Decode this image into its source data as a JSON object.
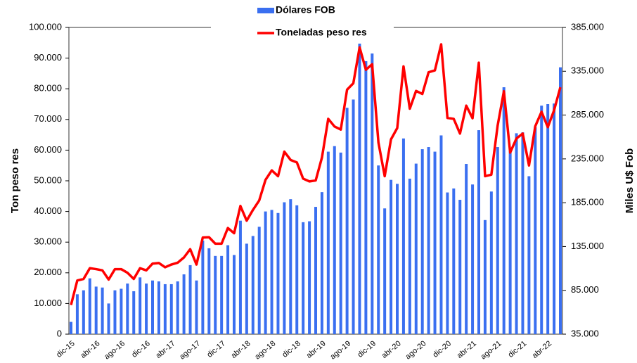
{
  "chart_data": {
    "type": "bar-line",
    "categories": [
      "dic-15",
      null,
      null,
      null,
      "abr-16",
      null,
      null,
      null,
      "ago-16",
      null,
      null,
      null,
      "dic-16",
      null,
      null,
      null,
      "abr-17",
      null,
      null,
      null,
      "ago-17",
      null,
      null,
      null,
      "dic-17",
      null,
      null,
      null,
      "abr-18",
      null,
      null,
      null,
      "ago-18",
      null,
      null,
      null,
      "dic-18",
      null,
      null,
      null,
      "abr-19",
      null,
      null,
      null,
      "ago-19",
      null,
      null,
      null,
      "dic-19",
      null,
      null,
      null,
      "abr-20",
      null,
      null,
      null,
      "ago-20",
      null,
      null,
      null,
      "dic-20",
      null,
      null,
      null,
      "abr-21",
      null,
      null,
      null,
      "ago-21",
      null,
      null,
      null,
      "dic-21",
      null,
      null,
      null,
      "abr-22",
      null,
      null
    ],
    "series": [
      {
        "name": "Dólares FOB",
        "color": "#3a6ff0",
        "axis": "y2",
        "kind": "bar",
        "values": [
          49000,
          80500,
          85050,
          98700,
          89250,
          88200,
          70000,
          85050,
          86800,
          92750,
          84000,
          99750,
          92750,
          96250,
          95200,
          92050,
          92050,
          95200,
          103250,
          113750,
          96250,
          141750,
          133000,
          124250,
          124250,
          136500,
          125300,
          164500,
          138250,
          147000,
          157500,
          175000,
          176750,
          173250,
          185500,
          189000,
          182000,
          162750,
          163800,
          180250,
          197050,
          243250,
          249550,
          242200,
          293300,
          302750,
          367500,
          346500,
          355250,
          227500,
          178500,
          211050,
          206500,
          258300,
          212450,
          229600,
          246050,
          248500,
          243250,
          261800,
          196700,
          201250,
          188300,
          229250,
          205800,
          267750,
          165200,
          197750,
          248500,
          316750,
          245000,
          264250,
          265300,
          215250,
          271250,
          295750,
          297500,
          298200,
          339500
        ]
      },
      {
        "name": "Toneladas peso res",
        "color": "#ff0000",
        "axis": "y",
        "kind": "line",
        "values": [
          9.5,
          17.5,
          18,
          21.5,
          21.2,
          20.8,
          17.8,
          21.2,
          21.2,
          20,
          18,
          21.5,
          20.8,
          23,
          23.2,
          21.8,
          22.7,
          23.3,
          25,
          27.7,
          22.7,
          31.5,
          31.6,
          29.5,
          29.5,
          34.6,
          32.9,
          41.8,
          37,
          40.5,
          43.6,
          50.3,
          53.4,
          51.5,
          59.5,
          56.8,
          56,
          50.7,
          49.8,
          50.1,
          57.6,
          70.2,
          67.7,
          66.7,
          79.7,
          81.8,
          93.5,
          86.2,
          88,
          62.5,
          51.5,
          63.5,
          67.2,
          87.3,
          73.5,
          79.3,
          78.3,
          85.4,
          86,
          94.5,
          70.5,
          70.2,
          65.4,
          74.5,
          70.4,
          88.5,
          51.5,
          52,
          68,
          79.2,
          59.2,
          63.8,
          65.4,
          55,
          67.8,
          72.5,
          67.5,
          73,
          80.5
        ]
      }
    ],
    "y_label": "Ton peso res",
    "y2_label": "Miles U$ Fob",
    "ylim": [
      0,
      100
    ],
    "yticks": [
      0,
      {
        "value": 10,
        "label": "10.000"
      },
      {
        "value": 20,
        "label": "20.000"
      },
      {
        "value": 30,
        "label": "30.000"
      },
      {
        "value": 40,
        "label": "40.000"
      },
      {
        "value": 50,
        "label": "50.000"
      },
      {
        "value": 60,
        "label": "60.000"
      },
      {
        "value": 70,
        "label": "70.000"
      },
      {
        "value": 80,
        "label": "80.000"
      },
      {
        "value": 90,
        "label": "90.000"
      },
      {
        "value": 100,
        "label": "100.000"
      }
    ],
    "y2lim": [
      35000,
      385000
    ],
    "y2ticks": [
      {
        "value": 35000,
        "label": "35.000"
      },
      {
        "value": 85000,
        "label": "85.000"
      },
      {
        "value": 135000,
        "label": "135.000"
      },
      {
        "value": 185000,
        "label": "185.000"
      },
      {
        "value": 235000,
        "label": "235.000"
      },
      {
        "value": 285000,
        "label": "285.000"
      },
      {
        "value": 335000,
        "label": "335.000"
      },
      {
        "value": 385000,
        "label": "385.000"
      }
    ],
    "legend": "top"
  }
}
